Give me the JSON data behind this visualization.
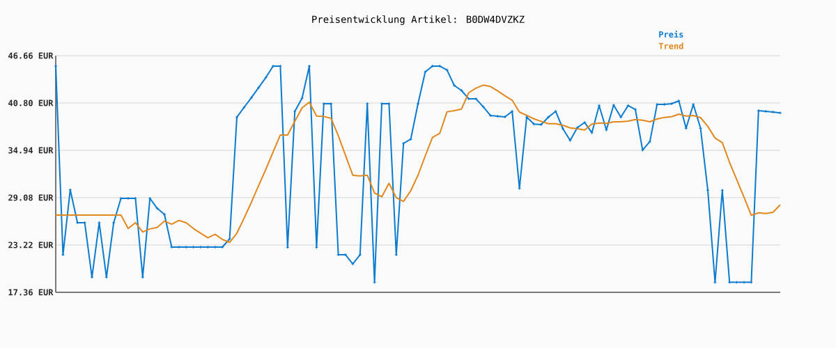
{
  "chart_data": {
    "type": "line",
    "title": "Preisentwicklung Artikel: B0DW4DVZKZ",
    "categories": [
      null,
      null,
      null,
      null,
      null,
      null,
      null,
      null,
      null,
      null,
      null,
      null,
      null,
      null,
      null,
      null,
      null,
      null,
      null,
      null,
      null,
      null,
      null,
      null,
      null,
      null,
      null,
      null,
      null,
      null,
      null,
      null,
      null,
      null,
      null,
      null,
      null,
      null,
      null,
      null,
      null,
      null,
      null,
      null,
      null,
      null,
      null,
      null,
      null,
      null,
      null,
      null,
      null,
      null,
      null,
      null,
      null,
      null,
      null,
      null,
      null,
      null,
      null,
      null,
      null,
      null,
      null,
      null,
      null,
      null,
      null,
      null,
      null,
      null,
      null,
      null,
      null,
      null,
      null,
      null,
      null,
      null,
      null,
      null,
      null,
      null,
      null,
      null,
      null,
      null,
      null,
      null,
      null,
      null,
      null,
      null,
      null,
      null,
      null,
      null,
      null
    ],
    "series": [
      {
        "name": "Preis",
        "color": "#0a7bcf",
        "marker": "cross",
        "values": [
          45.37,
          22.01,
          30.05,
          25.98,
          25.98,
          19.23,
          25.98,
          19.23,
          25.98,
          28.99,
          28.99,
          28.99,
          19.23,
          28.99,
          27.76,
          27.01,
          22.96,
          22.96,
          22.96,
          22.96,
          22.96,
          22.96,
          22.96,
          22.96,
          23.97,
          39.05,
          40.26,
          41.46,
          42.7,
          43.96,
          45.37,
          45.37,
          22.93,
          39.77,
          41.4,
          45.37,
          22.93,
          40.71,
          40.71,
          22.01,
          22.01,
          20.87,
          22.01,
          40.71,
          18.59,
          40.71,
          40.71,
          22.01,
          35.8,
          36.32,
          40.71,
          44.65,
          45.37,
          45.37,
          44.88,
          42.98,
          42.35,
          41.32,
          41.32,
          40.34,
          39.25,
          39.16,
          39.08,
          39.77,
          30.23,
          39.05,
          38.19,
          38.13,
          39.05,
          39.77,
          37.61,
          36.17,
          37.76,
          38.39,
          37.12,
          40.48,
          37.46,
          40.54,
          39.05,
          40.48,
          40.0,
          34.97,
          36.03,
          40.63,
          40.63,
          40.71,
          41.06,
          37.67,
          40.63,
          37.67,
          30.0,
          18.59,
          30.0,
          18.6,
          18.6,
          18.6,
          18.6,
          39.85,
          39.77,
          39.68,
          39.57
        ]
      },
      {
        "name": "Trend",
        "color": "#e0881e",
        "marker": "none",
        "values": [
          26.93,
          26.93,
          26.93,
          26.93,
          26.93,
          26.93,
          26.93,
          26.93,
          26.93,
          26.93,
          25.26,
          25.98,
          24.83,
          25.21,
          25.4,
          26.18,
          25.8,
          26.26,
          25.98,
          25.26,
          24.68,
          24.11,
          24.54,
          23.91,
          23.54,
          24.68,
          26.55,
          28.5,
          30.57,
          32.59,
          34.74,
          36.84,
          36.84,
          38.53,
          40.2,
          40.91,
          39.19,
          39.13,
          38.9,
          36.75,
          34.31,
          31.86,
          31.77,
          31.86,
          29.66,
          29.19,
          30.86,
          29.08,
          28.62,
          29.94,
          31.86,
          34.25,
          36.55,
          37.03,
          39.71,
          39.85,
          40.05,
          42.07,
          42.64,
          43.01,
          42.84,
          42.29,
          41.69,
          41.14,
          39.68,
          39.27,
          38.84,
          38.53,
          38.24,
          38.24,
          38.04,
          37.72,
          37.61,
          37.46,
          38.19,
          38.33,
          38.27,
          38.47,
          38.47,
          38.56,
          38.76,
          38.67,
          38.47,
          38.82,
          39.02,
          39.1,
          39.42,
          39.19,
          39.25,
          38.99,
          37.9,
          36.46,
          35.89,
          33.45,
          31.29,
          29.14,
          26.9,
          27.21,
          27.12,
          27.27,
          28.19
        ]
      }
    ],
    "ylim": [
      17.36,
      46.66
    ],
    "yticks": [
      {
        "value": 17.36,
        "label": "17.36 EUR"
      },
      {
        "value": 23.22,
        "label": "23.22 EUR"
      },
      {
        "value": 29.08,
        "label": "29.08 EUR"
      },
      {
        "value": 34.94,
        "label": "34.94 EUR"
      },
      {
        "value": 40.8,
        "label": "40.80 EUR"
      },
      {
        "value": 46.66,
        "label": "46.66 EUR"
      }
    ],
    "grid": "y",
    "legend": "top right",
    "tick_labels": "y",
    "line_style": "solid"
  }
}
